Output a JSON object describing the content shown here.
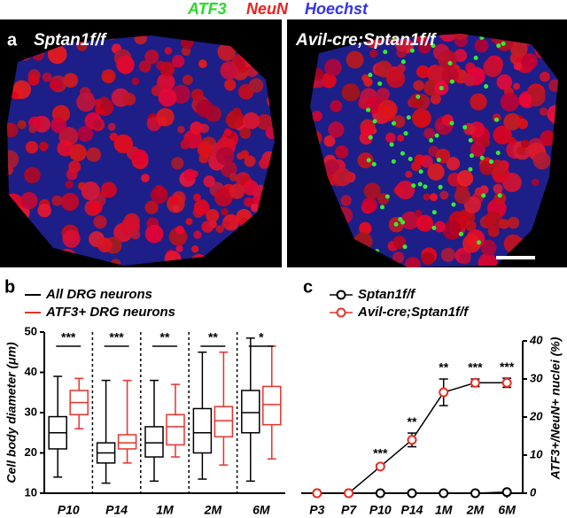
{
  "figure": {
    "stains": [
      {
        "text": "ATF3",
        "color": "#22dd22"
      },
      {
        "text": "NeuN",
        "color": "#ee2222"
      },
      {
        "text": "Hoechst",
        "color": "#3333ee"
      }
    ],
    "panel_a": {
      "letter": "a",
      "left_label": "Sptan1f/f",
      "right_label": "Avil-cre;Sptan1f/f"
    }
  },
  "chart_data": [
    {
      "type": "box",
      "letter": "b",
      "y_label": "Cell body diameter (μm)",
      "categories": [
        "P10",
        "P14",
        "1M",
        "2M",
        "6M"
      ],
      "ylim": [
        10,
        50
      ],
      "yticks": [
        10,
        20,
        30,
        40,
        50
      ],
      "series": [
        {
          "name": "All DRG neurons",
          "color": "#000000",
          "min": [
            14,
            12.5,
            13,
            13.5,
            13
          ],
          "q1": [
            21,
            17.5,
            19,
            20,
            25
          ],
          "median": [
            25,
            20,
            22.5,
            25,
            30
          ],
          "q3": [
            29,
            22.5,
            26.5,
            31,
            35.5
          ],
          "max": [
            39,
            38,
            38,
            45,
            48.5
          ]
        },
        {
          "name": "ATF3+ DRG neurons",
          "color": "#e8312a",
          "min": [
            26,
            17.5,
            19,
            17,
            18.5
          ],
          "q1": [
            29.5,
            21,
            22,
            24,
            27
          ],
          "median": [
            32.5,
            22.5,
            26.5,
            28,
            32
          ],
          "q3": [
            35.5,
            24.5,
            29.5,
            31.5,
            36.5
          ],
          "max": [
            38.5,
            38,
            37,
            45,
            46.5
          ]
        }
      ],
      "annotations": [
        "***",
        "***",
        "**",
        "**",
        "*"
      ]
    },
    {
      "type": "line",
      "letter": "c",
      "y_label": "ATF3+/NeuN+ nuclei (%)",
      "categories": [
        "P3",
        "P7",
        "P10",
        "P14",
        "1M",
        "2M",
        "6M"
      ],
      "ylim": [
        0,
        40
      ],
      "yticks": [
        0,
        10,
        20,
        30,
        40
      ],
      "series": [
        {
          "name": "Sptan1f/f",
          "color": "#000000",
          "values": [
            0,
            0,
            0,
            0,
            0,
            0,
            0.3
          ],
          "errors": [
            0,
            0,
            0,
            0,
            0,
            0,
            0.2
          ]
        },
        {
          "name": "Avil-cre;Sptan1f/f",
          "color": "#e8312a",
          "values": [
            0,
            0,
            7,
            14,
            26.5,
            29,
            29
          ],
          "errors": [
            0,
            0,
            0.5,
            1.8,
            3.5,
            1,
            1.2
          ]
        }
      ],
      "annotations": [
        null,
        null,
        "***",
        "**",
        "**",
        "***",
        "***"
      ]
    }
  ]
}
